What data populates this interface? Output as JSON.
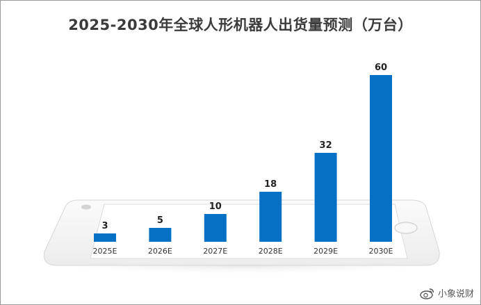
{
  "chart_data": {
    "type": "bar",
    "title": "2025-2030年全球人形机器人出货量预测（万台）",
    "categories": [
      "2025E",
      "2026E",
      "2027E",
      "2028E",
      "2029E",
      "2030E"
    ],
    "values": [
      3,
      5,
      10,
      18,
      32,
      60
    ],
    "xlabel": "",
    "ylabel": "",
    "ylim": [
      0,
      60
    ],
    "grid": false,
    "legend": "none",
    "data_labels": true,
    "bar_color": "#0670c4"
  },
  "watermark": {
    "text": "小象说财",
    "icon": "weibo-icon"
  }
}
